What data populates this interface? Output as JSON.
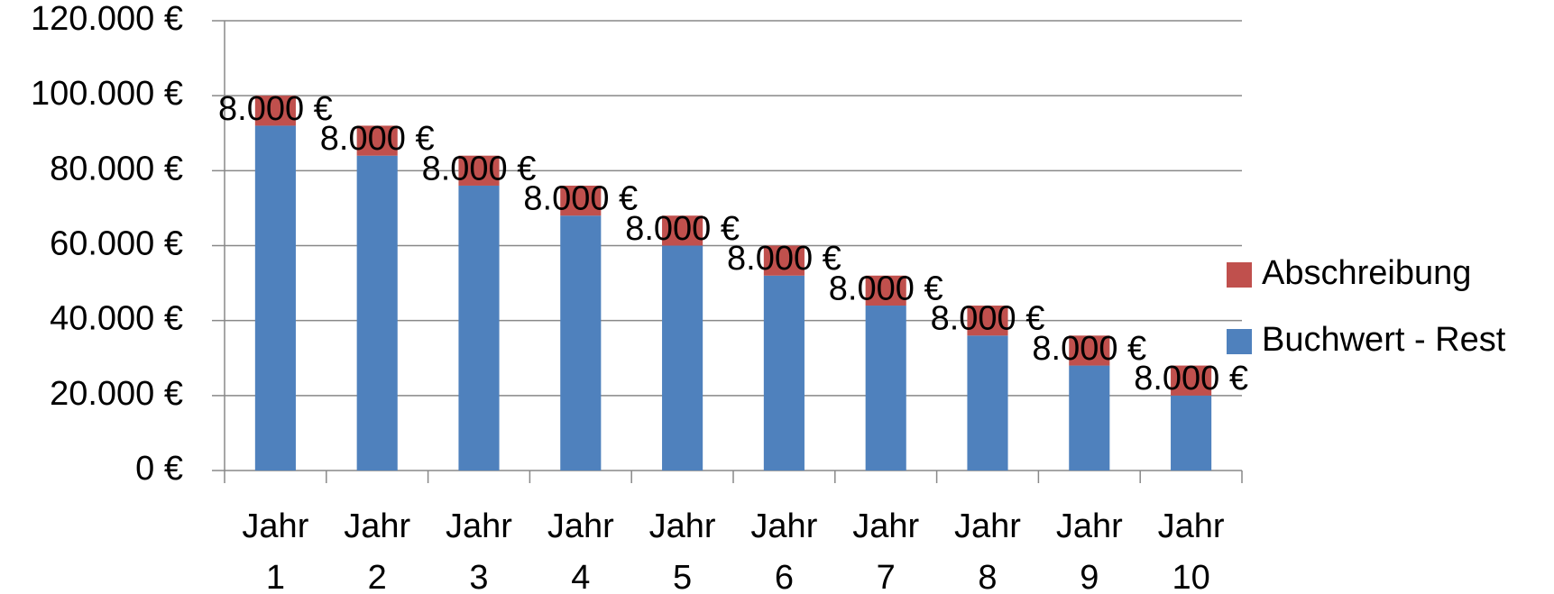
{
  "chart_data": {
    "type": "stacked-bar",
    "categories": [
      "Jahr 1",
      "Jahr 2",
      "Jahr 3",
      "Jahr 4",
      "Jahr 5",
      "Jahr 6",
      "Jahr 7",
      "Jahr 8",
      "Jahr 9",
      "Jahr 10"
    ],
    "series": [
      {
        "name": "Buchwert - Rest",
        "color": "#4f81bd",
        "values": [
          92000,
          84000,
          76000,
          68000,
          60000,
          52000,
          44000,
          36000,
          28000,
          20000
        ]
      },
      {
        "name": "Abschreibung",
        "color": "#c0504d",
        "values": [
          8000,
          8000,
          8000,
          8000,
          8000,
          8000,
          8000,
          8000,
          8000,
          8000
        ],
        "value_labels": [
          "8.000 €",
          "8.000 €",
          "8.000 €",
          "8.000 €",
          "8.000 €",
          "8.000 €",
          "8.000 €",
          "8.000 €",
          "8.000 €",
          "8.000 €"
        ]
      }
    ],
    "ylim": [
      0,
      120000
    ],
    "yticks": [
      {
        "value": 0,
        "label": "0 €"
      },
      {
        "value": 20000,
        "label": "20.000 €"
      },
      {
        "value": 40000,
        "label": "40.000 €"
      },
      {
        "value": 60000,
        "label": "60.000 €"
      },
      {
        "value": 80000,
        "label": "80.000 €"
      },
      {
        "value": 100000,
        "label": "100.000 €"
      },
      {
        "value": 120000,
        "label": "120.000 €"
      }
    ],
    "grid": true,
    "legend": "right"
  }
}
